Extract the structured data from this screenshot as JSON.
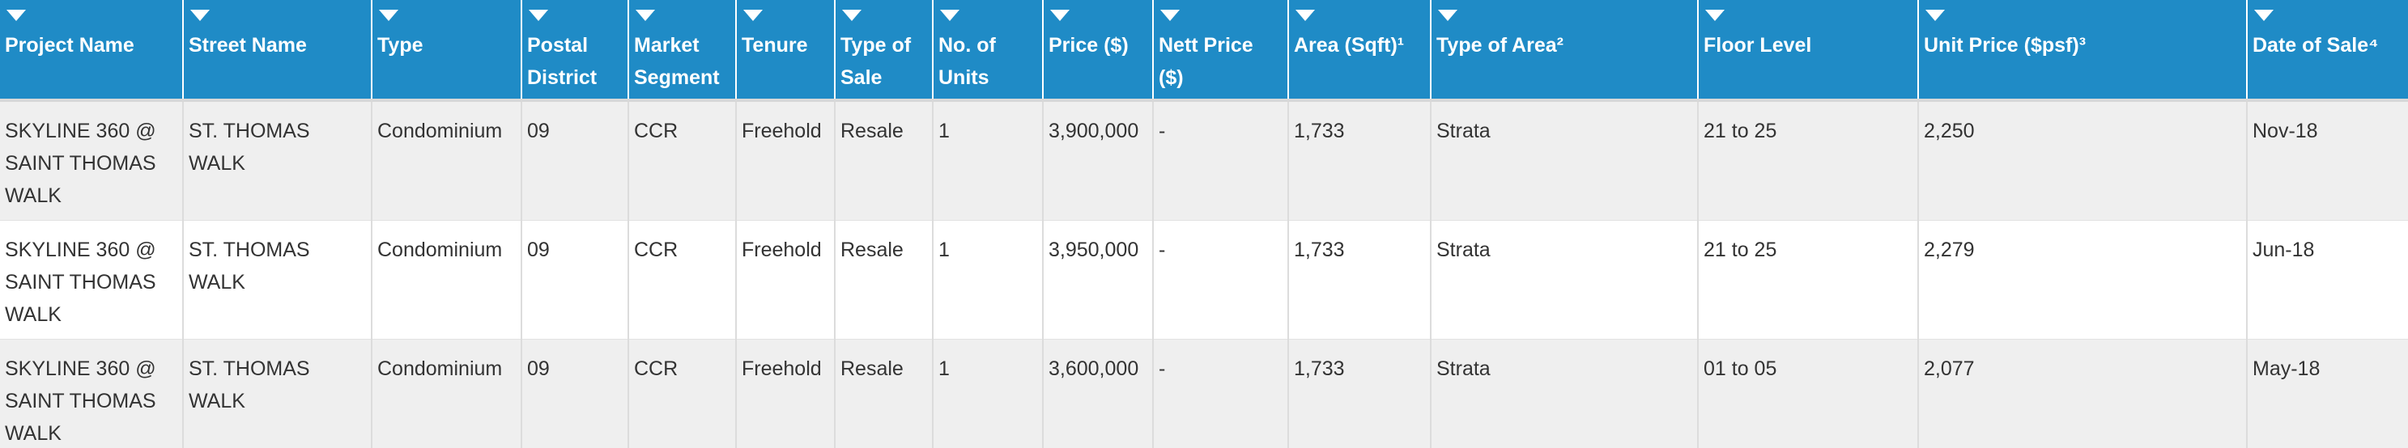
{
  "table": {
    "headers": [
      {
        "label": "Project Name"
      },
      {
        "label": "Street Name"
      },
      {
        "label": "Type"
      },
      {
        "label": "Postal District"
      },
      {
        "label": "Market Segment"
      },
      {
        "label": "Tenure"
      },
      {
        "label": "Type of Sale"
      },
      {
        "label": "No. of Units"
      },
      {
        "label": "Price ($)"
      },
      {
        "label": "Nett Price ($)"
      },
      {
        "label": "Area (Sqft)¹"
      },
      {
        "label": "Type of Area²"
      },
      {
        "label": "Floor Level"
      },
      {
        "label": "Unit Price ($psf)³"
      },
      {
        "label": "Date of Sale⁴"
      }
    ],
    "rows": [
      [
        "SKYLINE 360 @ SAINT THOMAS WALK",
        "ST. THOMAS WALK",
        "Condominium",
        "09",
        "CCR",
        "Freehold",
        "Resale",
        "1",
        "3,900,000",
        "-",
        "1,733",
        "Strata",
        "21 to 25",
        "2,250",
        "Nov-18"
      ],
      [
        "SKYLINE 360 @ SAINT THOMAS WALK",
        "ST. THOMAS WALK",
        "Condominium",
        "09",
        "CCR",
        "Freehold",
        "Resale",
        "1",
        "3,950,000",
        "-",
        "1,733",
        "Strata",
        "21 to 25",
        "2,279",
        "Jun-18"
      ],
      [
        "SKYLINE 360 @ SAINT THOMAS WALK",
        "ST. THOMAS WALK",
        "Condominium",
        "09",
        "CCR",
        "Freehold",
        "Resale",
        "1",
        "3,600,000",
        "-",
        "1,733",
        "Strata",
        "01 to 05",
        "2,077",
        "May-18"
      ]
    ]
  }
}
